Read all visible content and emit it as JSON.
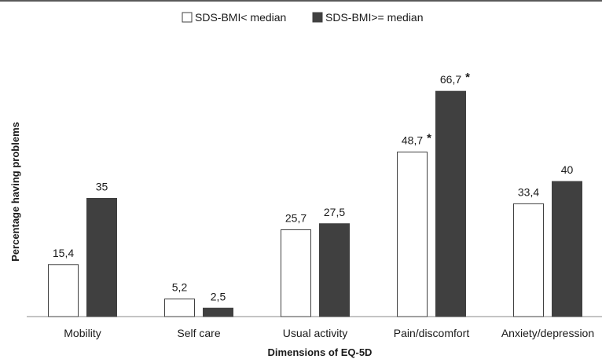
{
  "chart_data": {
    "type": "bar",
    "title": "",
    "xlabel": "Dimensions of EQ-5D",
    "ylabel": "Percentage having problems",
    "categories": [
      "Mobility",
      "Self care",
      "Usual activity",
      "Pain/discomfort",
      "Anxiety/depression"
    ],
    "series": [
      {
        "name": "SDS-BMI< median",
        "values": [
          15.4,
          5.2,
          25.7,
          48.7,
          33.4
        ],
        "labels": [
          "15,4",
          "5,2",
          "25,7",
          "48,7",
          "33,4"
        ],
        "marks": [
          "",
          "",
          "",
          "*",
          ""
        ],
        "fill": "#ffffff",
        "stroke": "#404040"
      },
      {
        "name": "SDS-BMI>= median",
        "values": [
          35,
          2.5,
          27.5,
          66.7,
          40
        ],
        "labels": [
          "35",
          "2,5",
          "27,5",
          "66,7",
          "40"
        ],
        "marks": [
          "",
          "",
          "",
          "*",
          ""
        ],
        "fill": "#404040",
        "stroke": "#404040"
      }
    ],
    "ylim": [
      0,
      75
    ],
    "grid": false,
    "legend_position": "top-center"
  }
}
